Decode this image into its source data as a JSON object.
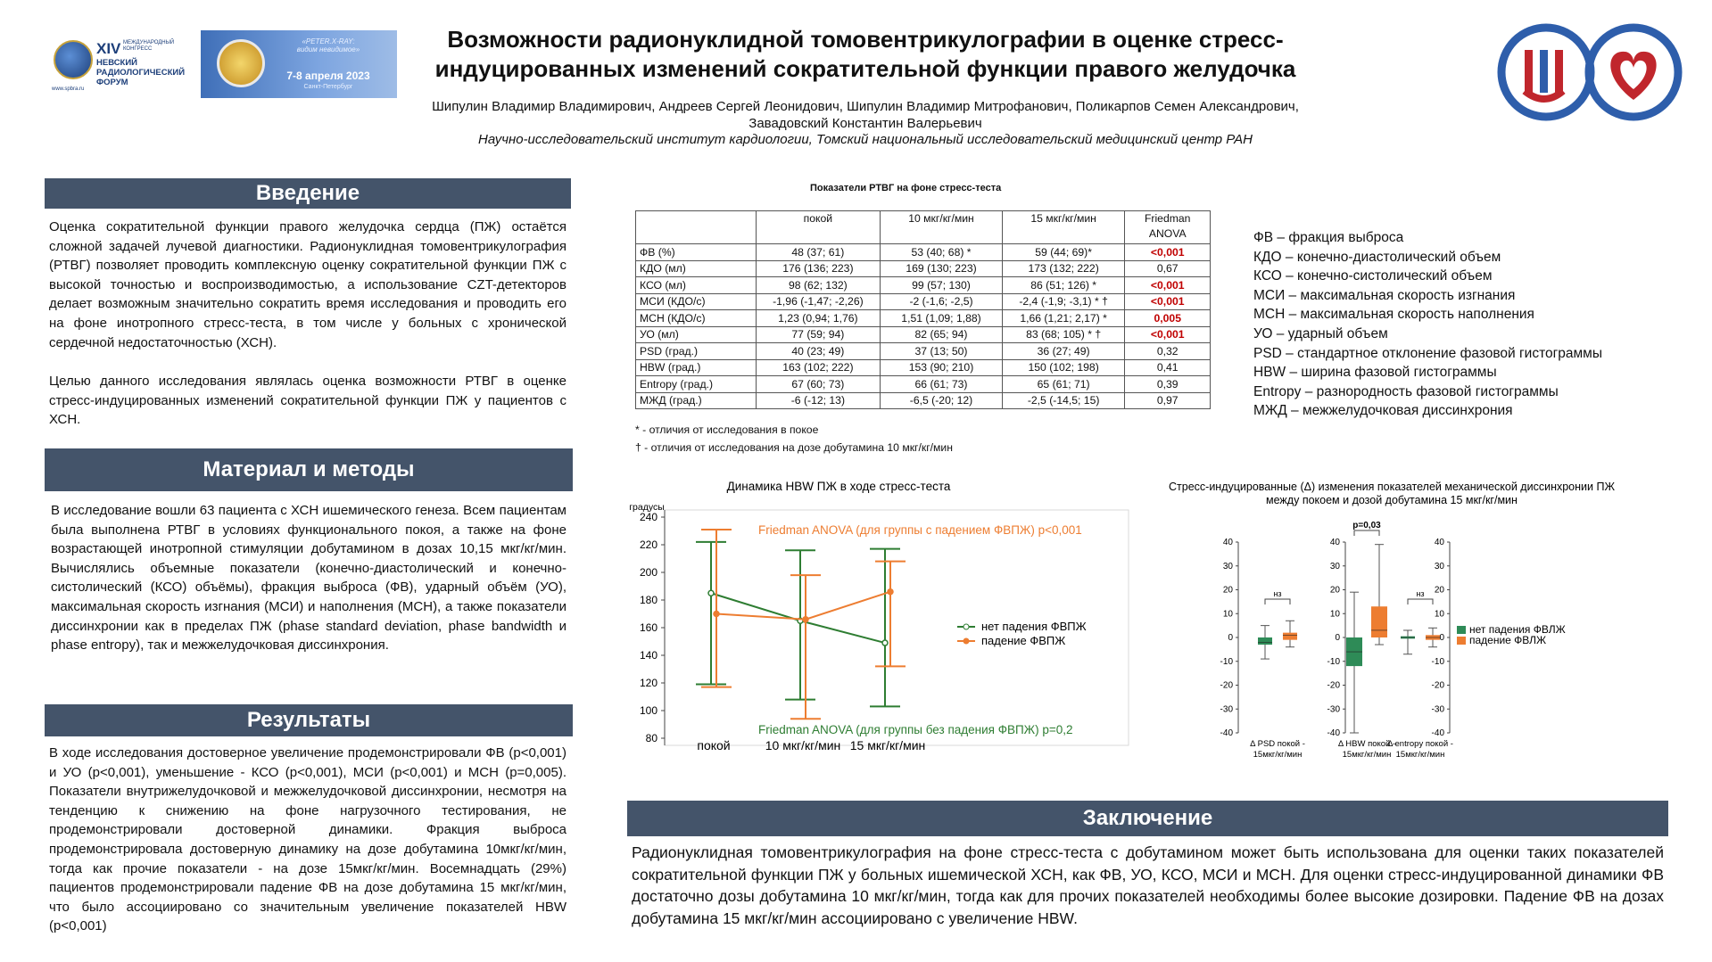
{
  "logos": {
    "forum": {
      "roman": "XIV",
      "congress": "МЕЖДУНАРОДНЫЙ КОНГРЕСС",
      "line1": "НЕВСКИЙ",
      "line2": "РАДИОЛОГИЧЕСКИЙ",
      "line3": "ФОРУМ",
      "site": "www.spbra.ru",
      "emblem": "NRF"
    },
    "peter": {
      "tagline1": "«PETER.X-RAY:",
      "tagline2": "видим невидимое»",
      "dates": "7-8 апреля 2023",
      "city": "Санкт-Петербург"
    },
    "institute_logo": "cardiology-institute-logo"
  },
  "header": {
    "title_line1": "Возможности радионуклидной томовентрикулографии в оценке стресс-",
    "title_line2": "индуцированных изменений сократительной функции правого желудочка",
    "authors_line1": "Шипулин Владимир Владимирович, Андреев Сергей Леонидович, Шипулин Владимир Митрофанович, Поликарпов Семен Александрович,",
    "authors_line2": "Завадовский Константин Валерьевич",
    "institution": "Научно-исследовательский институт кардиологии, Томский национальный исследовательский медицинский центр РАН"
  },
  "intro": {
    "heading": "Введение",
    "text": "Оценка сократительной функции правого желудочка сердца (ПЖ) остаётся сложной задачей лучевой диагностики. Радионуклидная томовентрикулография (РТВГ) позволяет проводить комплексную оценку сократительной функции ПЖ с высокой точностью и воспроизводимостью, а использование CZT-детекторов делает возможным значительно сократить время исследования и проводить его на фоне инотропного стресс-теста, в том числе у больных с хронической сердечной недостаточностью (ХСН).",
    "text2": "Целью данного исследования являлась оценка возможности РТВГ в оценке стресс-индуцированных изменений сократительной функции ПЖ у пациентов с ХСН."
  },
  "methods": {
    "heading": "Материал и методы",
    "text": "В исследование вошли 63 пациента с ХСН ишемического генеза. Всем пациентам была выполнена РТВГ в условиях функционального покоя, а также на фоне возрастающей инотропной стимуляции добутамином в дозах 10,15 мкг/кг/мин. Вычислялись объемные показатели (конечно-диастолический и конечно-систолический (КСО) объёмы), фракция выброса (ФВ), ударный объём (УО), максимальная скорость изгнания (МСИ) и наполнения (МСН), а также показатели диссинхронии как в пределах ПЖ (phase standard deviation, phase bandwidth и phase entropy), так и межжелудочковая диссинхрония."
  },
  "results": {
    "heading": "Результаты",
    "text": "В ходе исследования достоверное увеличение продемонстрировали ФВ (p<0,001) и УО (p<0,001), уменьшение - КСО (p<0,001), МСИ (p<0,001) и МСН (p=0,005). Показатели внутрижелудочковой и межжелудочковой диссинхронии, несмотря на тенденцию к снижению на фоне нагрузочного тестирования, не продемонстрировали достоверной динамики. Фракция выброса продемонстрировала достоверную динамику на дозе добутамина 10мкг/кг/мин, тогда как прочие показатели - на дозе 15мкг/кг/мин. Восемнадцать (29%) пациентов продемонстрировали падение ФВ на дозе добутамина 15 мкг/кг/мин, что было ассоциировано со значительным увеличение показателей HBW (p<0,001)"
  },
  "table": {
    "caption": "Показатели РТВГ на фоне стресс-теста",
    "headers": [
      "",
      "покой",
      "10 мкг/кг/мин",
      "15 мкг/кг/мин",
      "Friedman ANOVA"
    ],
    "rows": [
      {
        "name": "ФВ (%)",
        "rest": "48 (37; 61)",
        "d10": "53 (40; 68) *",
        "d15": "59 (44; 69)*",
        "p": "<0,001",
        "sig": true
      },
      {
        "name": "КДО (мл)",
        "rest": "176 (136; 223)",
        "d10": "169 (130; 223)",
        "d15": "173 (132; 222)",
        "p": "0,67",
        "sig": false
      },
      {
        "name": "КСО (мл)",
        "rest": "98 (62; 132)",
        "d10": "99 (57; 130)",
        "d15": "86 (51; 126) *",
        "p": "<0,001",
        "sig": true
      },
      {
        "name": "МСИ (КДО/с)",
        "rest": "-1,96 (-1,47; -2,26)",
        "d10": "-2 (-1,6; -2,5)",
        "d15": "-2,4 (-1,9; -3,1) * †",
        "p": "<0,001",
        "sig": true
      },
      {
        "name": "МСН (КДО/с)",
        "rest": "1,23 (0,94; 1,76)",
        "d10": "1,51 (1,09; 1,88)",
        "d15": "1,66 (1,21; 2,17) *",
        "p": "0,005",
        "sig": true
      },
      {
        "name": "УО (мл)",
        "rest": "77 (59; 94)",
        "d10": "82 (65; 94)",
        "d15": "83 (68; 105) * †",
        "p": "<0,001",
        "sig": true
      },
      {
        "name": "PSD (град.)",
        "rest": "40 (23; 49)",
        "d10": "37 (13; 50)",
        "d15": "36 (27; 49)",
        "p": "0,32",
        "sig": false
      },
      {
        "name": "HBW (град.)",
        "rest": "163 (102; 222)",
        "d10": "153 (90; 210)",
        "d15": "150 (102; 198)",
        "p": "0,41",
        "sig": false
      },
      {
        "name": "Entropy (град.)",
        "rest": "67 (60; 73)",
        "d10": "66 (61; 73)",
        "d15": "65 (61; 71)",
        "p": "0,39",
        "sig": false
      },
      {
        "name": "МЖД (град.)",
        "rest": "-6 (-12; 13)",
        "d10": "-6,5 (-20; 12)",
        "d15": "-2,5 (-14,5; 15)",
        "p": "0,97",
        "sig": false
      }
    ],
    "footnote1": "* - отличия от исследования в покое",
    "footnote2": "† - отличия от исследования на дозе добутамина 10 мкг/кг/мин"
  },
  "abbreviations": [
    "ФВ – фракция выброса",
    "КДО – конечно-диастолический объем",
    "КСО – конечно-систолический объем",
    "МСИ – максимальная скорость изгнания",
    "МСН – максимальная скорость наполнения",
    "УО – ударный объем",
    "PSD – стандартное отклонение фазовой гистограммы",
    "HBW – ширина фазовой гистограммы",
    "Entropy – разнородность фазовой гистограммы",
    "МЖД – межжелудочковая диссинхрония"
  ],
  "conclusion": {
    "heading": "Заключение",
    "text": "Радионуклидная томовентрикулография на фоне стресс-теста с добутамином может быть использована для оценки таких показателей сократительной функции ПЖ у больных ишемической ХСН, как ФВ, УО, КСО, МСИ и МСН. Для оценки стресс-индуцированной динамики ФВ достаточно дозы добутамина 10 мкг/кг/мин, тогда как для прочих показателей необходимы более высокие дозировки. Падение ФВ на дозах добутамина 15 мкг/кг/мин ассоциировано с увеличение HBW."
  },
  "chart_data": [
    {
      "type": "line",
      "title": "Динамика HBW ПЖ в ходе стресс-теста",
      "ylabel": "градусы",
      "xlabel": "",
      "categories": [
        "покой",
        "10 мкг/кг/мин",
        "15 мкг/кг/мин"
      ],
      "ylim": [
        80,
        240
      ],
      "yticks": [
        80,
        100,
        120,
        140,
        160,
        180,
        200,
        220,
        240
      ],
      "grid": false,
      "legend_position": "right",
      "series": [
        {
          "name": "нет падения ФВПЖ",
          "color": "#2e7d32",
          "values": [
            185,
            165,
            149
          ],
          "low": [
            119,
            108,
            103
          ],
          "high": [
            222,
            216,
            217
          ]
        },
        {
          "name": "падение ФВПЖ",
          "color": "#ed7d31",
          "values": [
            170,
            166,
            186
          ],
          "low": [
            117,
            94,
            132
          ],
          "high": [
            231,
            198,
            208
          ]
        }
      ],
      "annotations": [
        {
          "text": "Friedman ANOVA (для группы с падением ФВПЖ) p<0,001",
          "color": "#ed7d31"
        },
        {
          "text": "Friedman ANOVA (для группы без падения ФВПЖ) p=0,2",
          "color": "#2e7d32"
        }
      ]
    },
    {
      "type": "bar",
      "title_line1": "Стресс-индуцированные (Δ) изменения показателей механической диссинхронии ПЖ",
      "title_line2": "между покоем и дозой добутамина 15 мкг/кг/мин",
      "ylim": [
        -40,
        40
      ],
      "yticks": [
        -40,
        -30,
        -20,
        -10,
        0,
        10,
        20,
        30,
        40
      ],
      "legend_position": "right",
      "groups": [
        {
          "label1": "Δ PSD покой -",
          "label2": "15мкг/кг/мин",
          "sig": "нз",
          "no_drop": {
            "median": -2,
            "q1": -3,
            "q3": 0,
            "min": -9,
            "max": 5
          },
          "drop": {
            "median": 1,
            "q1": -1,
            "q3": 2,
            "min": -4,
            "max": 7
          }
        },
        {
          "label1": "Δ HBW покой -",
          "label2": "15мкг/кг/мин",
          "sig": "p=0,03",
          "no_drop": {
            "median": -6,
            "q1": -12,
            "q3": 0,
            "min": -40,
            "max": 19
          },
          "drop": {
            "median": 3,
            "q1": 0,
            "q3": 13,
            "min": -3,
            "max": 39
          }
        },
        {
          "label1": "Δ entropy покой -",
          "label2": "15мкг/кг/мин",
          "sig": "нз",
          "no_drop": {
            "median": 0,
            "q1": -0.5,
            "q3": 0.5,
            "min": -7,
            "max": 3
          },
          "drop": {
            "median": 0,
            "q1": -1,
            "q3": 1,
            "min": -4,
            "max": 4
          }
        }
      ],
      "series": [
        {
          "name": "нет падения ФВЛЖ",
          "color": "#2e8b57"
        },
        {
          "name": "падение ФВЛЖ",
          "color": "#ed7d31"
        }
      ]
    }
  ]
}
